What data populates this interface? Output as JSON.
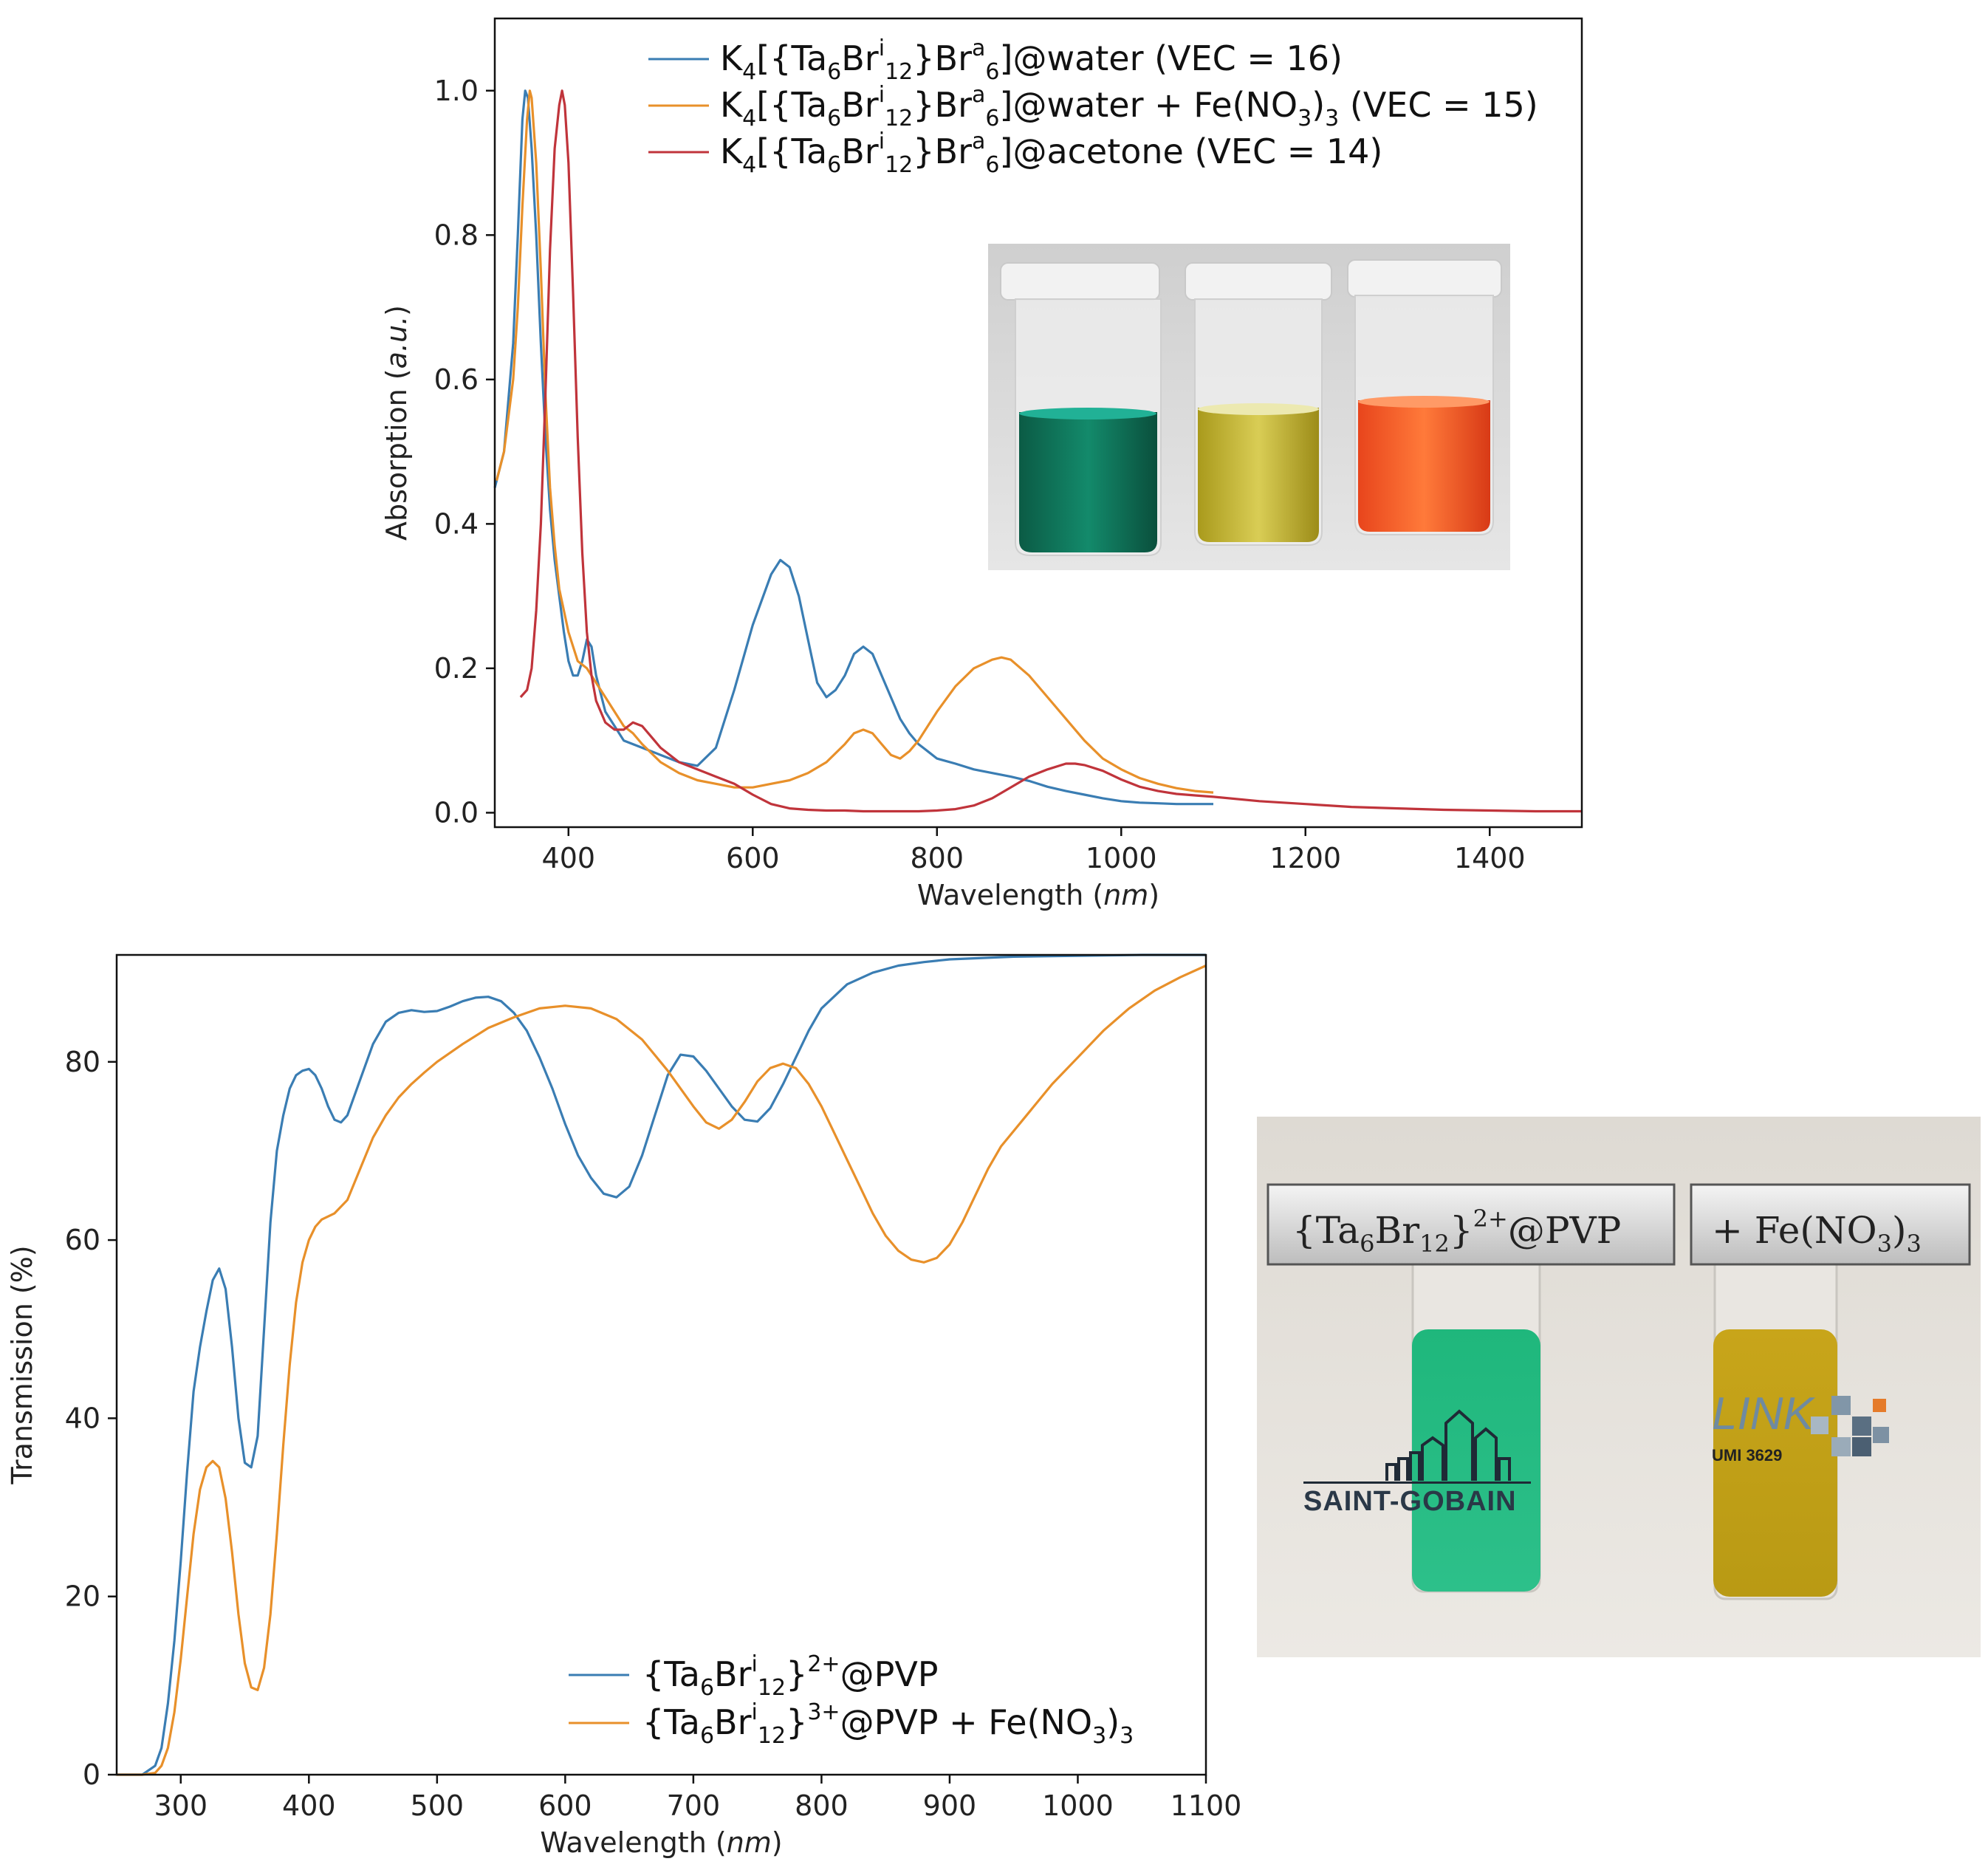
{
  "chart_data": [
    {
      "type": "line",
      "xlabel": "Wavelength",
      "xlabel_unit": "nm",
      "ylabel": "Absorption",
      "ylabel_unit": "a.u.",
      "xlim": [
        320,
        1500
      ],
      "ylim": [
        -0.02,
        1.1
      ],
      "xticks": [
        400,
        600,
        800,
        1000,
        1200,
        1400
      ],
      "yticks": [
        "0.0",
        "0.2",
        "0.4",
        "0.6",
        "0.8",
        "1.0"
      ],
      "legend_placement": "top",
      "series": [
        {
          "name": "K4[{Ta6Bri12}Bra6]@water (VEC = 16)",
          "color": "#3a7db3",
          "x": [
            320,
            330,
            340,
            345,
            350,
            353,
            356,
            360,
            365,
            370,
            375,
            380,
            385,
            390,
            395,
            400,
            405,
            410,
            415,
            420,
            425,
            430,
            440,
            450,
            460,
            470,
            480,
            500,
            520,
            540,
            560,
            580,
            600,
            620,
            630,
            640,
            650,
            660,
            670,
            680,
            690,
            700,
            710,
            720,
            730,
            740,
            750,
            760,
            770,
            780,
            790,
            800,
            820,
            840,
            860,
            880,
            900,
            920,
            940,
            960,
            980,
            1000,
            1020,
            1040,
            1060,
            1080,
            1100
          ],
          "y": [
            0.45,
            0.5,
            0.65,
            0.8,
            0.96,
            1.0,
            0.99,
            0.92,
            0.8,
            0.65,
            0.52,
            0.42,
            0.35,
            0.3,
            0.25,
            0.21,
            0.19,
            0.19,
            0.21,
            0.24,
            0.23,
            0.19,
            0.14,
            0.12,
            0.1,
            0.095,
            0.09,
            0.08,
            0.07,
            0.065,
            0.09,
            0.17,
            0.26,
            0.33,
            0.35,
            0.34,
            0.3,
            0.24,
            0.18,
            0.16,
            0.17,
            0.19,
            0.22,
            0.23,
            0.22,
            0.19,
            0.16,
            0.13,
            0.11,
            0.095,
            0.085,
            0.075,
            0.068,
            0.06,
            0.055,
            0.05,
            0.044,
            0.036,
            0.03,
            0.025,
            0.02,
            0.016,
            0.014,
            0.013,
            0.012,
            0.012,
            0.012
          ]
        },
        {
          "name": "K4[{Ta6Bri12}Bra6]@water + Fe(NO3)3 (VEC = 15)",
          "color": "#e8902a",
          "x": [
            322,
            330,
            340,
            345,
            350,
            355,
            358,
            360,
            365,
            370,
            375,
            380,
            385,
            390,
            400,
            410,
            420,
            430,
            440,
            450,
            460,
            470,
            480,
            500,
            520,
            540,
            560,
            580,
            600,
            620,
            640,
            660,
            680,
            700,
            710,
            720,
            730,
            740,
            750,
            760,
            770,
            780,
            800,
            820,
            840,
            860,
            870,
            880,
            900,
            920,
            940,
            960,
            980,
            1000,
            1020,
            1040,
            1060,
            1080,
            1100
          ],
          "y": [
            0.46,
            0.5,
            0.6,
            0.7,
            0.84,
            0.96,
            1.0,
            0.99,
            0.9,
            0.75,
            0.58,
            0.45,
            0.37,
            0.31,
            0.25,
            0.21,
            0.2,
            0.18,
            0.16,
            0.14,
            0.12,
            0.11,
            0.095,
            0.07,
            0.055,
            0.045,
            0.04,
            0.035,
            0.035,
            0.04,
            0.045,
            0.055,
            0.07,
            0.095,
            0.11,
            0.115,
            0.11,
            0.095,
            0.08,
            0.075,
            0.085,
            0.1,
            0.14,
            0.175,
            0.2,
            0.212,
            0.215,
            0.212,
            0.19,
            0.16,
            0.13,
            0.1,
            0.075,
            0.06,
            0.048,
            0.04,
            0.034,
            0.03,
            0.028
          ]
        },
        {
          "name": "K4[{Ta6Bri12}Bra6]@acetone (VEC = 14)",
          "color": "#c0343b",
          "x": [
            348,
            355,
            360,
            365,
            370,
            375,
            380,
            385,
            390,
            393,
            396,
            400,
            405,
            410,
            415,
            420,
            425,
            430,
            440,
            450,
            460,
            470,
            480,
            490,
            500,
            520,
            540,
            560,
            580,
            600,
            620,
            640,
            660,
            680,
            700,
            720,
            740,
            760,
            780,
            800,
            820,
            840,
            860,
            880,
            900,
            920,
            940,
            950,
            960,
            980,
            1000,
            1020,
            1040,
            1060,
            1080,
            1100,
            1150,
            1200,
            1250,
            1300,
            1350,
            1400,
            1450,
            1500
          ],
          "y": [
            0.16,
            0.17,
            0.2,
            0.28,
            0.4,
            0.58,
            0.78,
            0.92,
            0.98,
            1.0,
            0.98,
            0.9,
            0.72,
            0.52,
            0.36,
            0.25,
            0.19,
            0.155,
            0.125,
            0.115,
            0.115,
            0.125,
            0.12,
            0.105,
            0.09,
            0.07,
            0.06,
            0.05,
            0.04,
            0.025,
            0.012,
            0.006,
            0.004,
            0.003,
            0.003,
            0.002,
            0.002,
            0.002,
            0.002,
            0.003,
            0.005,
            0.01,
            0.02,
            0.035,
            0.05,
            0.06,
            0.068,
            0.068,
            0.066,
            0.058,
            0.046,
            0.036,
            0.03,
            0.026,
            0.024,
            0.022,
            0.016,
            0.012,
            0.008,
            0.006,
            0.004,
            0.003,
            0.002,
            0.002
          ]
        }
      ]
    },
    {
      "type": "line",
      "xlabel": "Wavelength",
      "xlabel_unit": "nm",
      "ylabel": "Transmission (%)",
      "xlim": [
        250,
        1100
      ],
      "ylim": [
        0,
        92
      ],
      "xticks": [
        300,
        400,
        500,
        600,
        700,
        800,
        900,
        1000,
        1100
      ],
      "yticks": [
        "0",
        "20",
        "40",
        "60",
        "80"
      ],
      "legend_placement": "bottom-right",
      "series": [
        {
          "name": "{Ta6Bri12}2+@PVP",
          "color": "#3a7db3",
          "x": [
            250,
            270,
            280,
            285,
            290,
            295,
            300,
            305,
            310,
            315,
            320,
            325,
            330,
            335,
            340,
            345,
            350,
            355,
            360,
            365,
            370,
            375,
            380,
            385,
            390,
            395,
            400,
            405,
            410,
            415,
            420,
            425,
            430,
            440,
            450,
            460,
            470,
            480,
            490,
            500,
            510,
            520,
            530,
            540,
            550,
            560,
            570,
            580,
            590,
            600,
            610,
            620,
            630,
            640,
            650,
            660,
            670,
            680,
            690,
            700,
            710,
            720,
            730,
            740,
            750,
            760,
            770,
            780,
            790,
            800,
            820,
            840,
            860,
            880,
            900,
            950,
            1000,
            1050,
            1100
          ],
          "y": [
            0,
            0,
            1.0,
            3.0,
            8.0,
            15.0,
            24.0,
            34.0,
            43.0,
            48.0,
            52.0,
            55.5,
            56.8,
            54.5,
            48.0,
            40.0,
            35.0,
            34.5,
            38.0,
            50.0,
            62.0,
            70.0,
            74.0,
            77.0,
            78.5,
            79.0,
            79.2,
            78.5,
            77.0,
            75.0,
            73.5,
            73.2,
            74.0,
            78.0,
            82.0,
            84.5,
            85.5,
            85.8,
            85.6,
            85.7,
            86.2,
            86.8,
            87.2,
            87.3,
            86.8,
            85.5,
            83.5,
            80.5,
            77.0,
            73.0,
            69.5,
            67.0,
            65.2,
            64.8,
            66.0,
            69.5,
            74.0,
            78.5,
            80.8,
            80.6,
            79.0,
            77.0,
            75.0,
            73.5,
            73.3,
            74.8,
            77.5,
            80.5,
            83.5,
            86.0,
            88.7,
            90.0,
            90.8,
            91.2,
            91.5,
            91.8,
            91.9,
            92.0,
            92.0
          ]
        },
        {
          "name": "{Ta6Bri12}3+@PVP + Fe(NO3)3",
          "color": "#e8902a",
          "x": [
            250,
            270,
            280,
            285,
            290,
            295,
            300,
            305,
            310,
            315,
            320,
            325,
            330,
            335,
            340,
            345,
            350,
            355,
            360,
            365,
            370,
            375,
            380,
            385,
            390,
            395,
            400,
            405,
            410,
            420,
            430,
            440,
            450,
            460,
            470,
            480,
            490,
            500,
            520,
            540,
            560,
            580,
            600,
            620,
            640,
            660,
            680,
            700,
            710,
            720,
            730,
            740,
            750,
            760,
            770,
            780,
            790,
            800,
            810,
            820,
            830,
            840,
            850,
            860,
            870,
            880,
            890,
            900,
            910,
            920,
            930,
            940,
            960,
            980,
            1000,
            1020,
            1040,
            1060,
            1080,
            1100
          ],
          "y": [
            0,
            0,
            0.2,
            1.0,
            3.0,
            7.0,
            13.0,
            20.0,
            27.0,
            32.0,
            34.5,
            35.2,
            34.5,
            31.0,
            25.0,
            18.0,
            12.5,
            9.8,
            9.5,
            12.0,
            18.0,
            27.0,
            37.0,
            46.0,
            53.0,
            57.5,
            60.0,
            61.5,
            62.3,
            63.0,
            64.5,
            68.0,
            71.5,
            74.0,
            76.0,
            77.5,
            78.8,
            80.0,
            82.0,
            83.8,
            85.0,
            86.0,
            86.3,
            86.0,
            84.8,
            82.5,
            79.0,
            75.0,
            73.2,
            72.5,
            73.5,
            75.5,
            77.8,
            79.3,
            79.8,
            79.3,
            77.5,
            75.0,
            72.0,
            69.0,
            66.0,
            63.0,
            60.5,
            58.8,
            57.8,
            57.5,
            58.0,
            59.5,
            62.0,
            65.0,
            68.0,
            70.5,
            74.0,
            77.5,
            80.5,
            83.5,
            86.0,
            88.0,
            89.5,
            90.8
          ]
        }
      ]
    }
  ]
}
